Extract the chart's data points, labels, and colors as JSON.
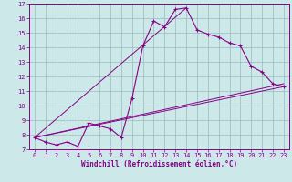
{
  "title": "",
  "xlabel": "Windchill (Refroidissement éolien,°C)",
  "background_color": "#cce8e8",
  "line_color": "#880088",
  "grid_color": "#99bbbb",
  "xlim": [
    -0.5,
    23.5
  ],
  "ylim": [
    7,
    17
  ],
  "xticks": [
    0,
    1,
    2,
    3,
    4,
    5,
    6,
    7,
    8,
    9,
    10,
    11,
    12,
    13,
    14,
    15,
    16,
    17,
    18,
    19,
    20,
    21,
    22,
    23
  ],
  "yticks": [
    7,
    8,
    9,
    10,
    11,
    12,
    13,
    14,
    15,
    16,
    17
  ],
  "main_series_x": [
    0,
    1,
    2,
    3,
    4,
    5,
    6,
    7,
    8,
    9,
    10,
    11,
    12,
    13,
    14,
    15,
    16,
    17,
    18,
    19,
    20,
    21,
    22,
    23
  ],
  "main_series_y": [
    7.8,
    7.5,
    7.3,
    7.5,
    7.2,
    8.8,
    8.6,
    8.4,
    7.8,
    10.5,
    14.1,
    15.8,
    15.4,
    16.6,
    16.7,
    15.2,
    14.9,
    14.7,
    14.3,
    14.1,
    12.7,
    12.3,
    11.5,
    11.3
  ],
  "trend1_x": [
    0,
    23
  ],
  "trend1_y": [
    7.8,
    11.3
  ],
  "trend2_x": [
    0,
    23
  ],
  "trend2_y": [
    7.8,
    11.5
  ],
  "trend3_x": [
    0,
    14
  ],
  "trend3_y": [
    7.8,
    16.7
  ]
}
